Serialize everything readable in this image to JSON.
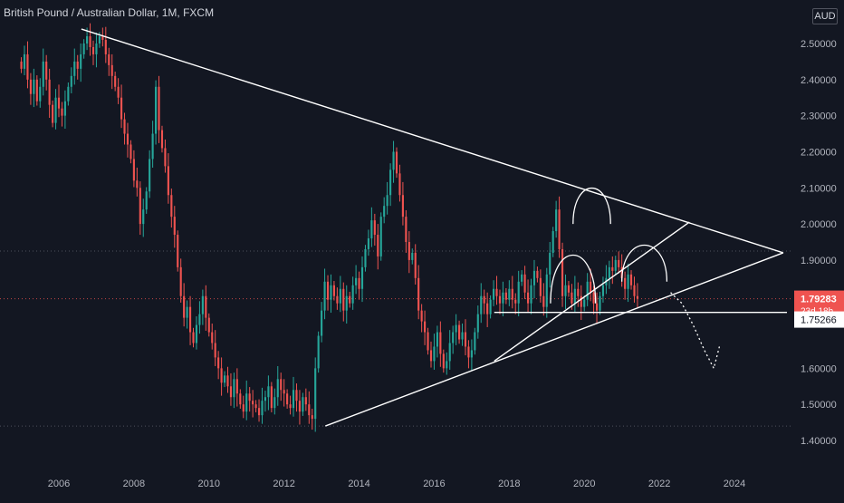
{
  "chart_data": {
    "type": "candlestick",
    "title": "British Pound / Australian Dollar, 1M, FXCM",
    "currency": "AUD",
    "y_range": [
      1.35,
      2.62
    ],
    "x_range": [
      2004.95,
      2025.4
    ],
    "y_ticks": [
      {
        "value": 2.5,
        "label": "2.50000"
      },
      {
        "value": 2.4,
        "label": "2.40000"
      },
      {
        "value": 2.3,
        "label": "2.30000"
      },
      {
        "value": 2.2,
        "label": "2.20000"
      },
      {
        "value": 2.1,
        "label": "2.10000"
      },
      {
        "value": 2.0,
        "label": "2.00000"
      },
      {
        "value": 1.9,
        "label": "1.90000"
      },
      {
        "value": 1.6,
        "label": "1.60000"
      },
      {
        "value": 1.5,
        "label": "1.50000"
      },
      {
        "value": 1.4,
        "label": "1.40000"
      }
    ],
    "x_ticks": [
      {
        "value": 2006,
        "label": "2006"
      },
      {
        "value": 2008,
        "label": "2008"
      },
      {
        "value": 2010,
        "label": "2010"
      },
      {
        "value": 2012,
        "label": "2012"
      },
      {
        "value": 2014,
        "label": "2014"
      },
      {
        "value": 2016,
        "label": "2016"
      },
      {
        "value": 2018,
        "label": "2018"
      },
      {
        "value": 2020,
        "label": "2020"
      },
      {
        "value": 2022,
        "label": "2022"
      },
      {
        "value": 2024,
        "label": "2024"
      }
    ],
    "price_labels": [
      {
        "value": 1.79283,
        "label": "1.79283",
        "sub": "23d 18h",
        "kind": "current"
      },
      {
        "value": 1.75266,
        "label": "1.75266",
        "kind": "marker"
      }
    ],
    "dotted_levels": [
      1.925,
      1.79283,
      1.44
    ],
    "monthly_close": [
      2.43,
      2.47,
      2.4,
      2.36,
      2.4,
      2.34,
      2.38,
      2.45,
      2.4,
      2.33,
      2.28,
      2.35,
      2.32,
      2.3,
      2.34,
      2.38,
      2.41,
      2.45,
      2.43,
      2.47,
      2.5,
      2.52,
      2.49,
      2.47,
      2.5,
      2.52,
      2.51,
      2.47,
      2.44,
      2.41,
      2.38,
      2.35,
      2.29,
      2.25,
      2.22,
      2.18,
      2.12,
      2.1,
      2.0,
      2.04,
      2.09,
      2.18,
      2.25,
      2.38,
      2.26,
      2.21,
      2.16,
      2.08,
      2.02,
      1.97,
      1.88,
      1.8,
      1.74,
      1.77,
      1.7,
      1.67,
      1.72,
      1.75,
      1.8,
      1.74,
      1.7,
      1.67,
      1.63,
      1.6,
      1.56,
      1.58,
      1.55,
      1.52,
      1.57,
      1.53,
      1.5,
      1.48,
      1.53,
      1.51,
      1.5,
      1.49,
      1.47,
      1.51,
      1.52,
      1.55,
      1.49,
      1.52,
      1.57,
      1.54,
      1.53,
      1.5,
      1.49,
      1.54,
      1.51,
      1.48,
      1.52,
      1.5,
      1.47,
      1.46,
      1.6,
      1.69,
      1.76,
      1.84,
      1.79,
      1.83,
      1.8,
      1.78,
      1.82,
      1.76,
      1.8,
      1.78,
      1.83,
      1.85,
      1.82,
      1.88,
      1.93,
      1.96,
      2.01,
      1.97,
      1.91,
      2.02,
      2.05,
      2.08,
      2.15,
      2.2,
      2.14,
      2.08,
      2.02,
      1.95,
      1.9,
      1.92,
      1.85,
      1.76,
      1.73,
      1.7,
      1.65,
      1.62,
      1.66,
      1.7,
      1.64,
      1.6,
      1.62,
      1.67,
      1.7,
      1.72,
      1.68,
      1.7,
      1.66,
      1.63,
      1.65,
      1.7,
      1.75,
      1.8,
      1.78,
      1.75,
      1.79,
      1.82,
      1.8,
      1.78,
      1.81,
      1.79,
      1.82,
      1.79,
      1.78,
      1.84,
      1.86,
      1.81,
      1.78,
      1.83,
      1.87,
      1.85,
      1.8,
      1.77,
      1.86,
      1.92,
      1.98,
      2.04,
      1.93,
      1.8,
      1.83,
      1.81,
      1.78,
      1.82,
      1.8,
      1.77,
      1.79,
      1.84,
      1.81,
      1.78,
      1.76,
      1.8,
      1.83,
      1.85,
      1.88,
      1.87,
      1.9,
      1.88,
      1.85,
      1.82,
      1.86,
      1.83,
      1.8,
      1.79283
    ],
    "first_candle_date": 2005.0
  },
  "drawings": {
    "descending_line": [
      [
        2006.6,
        2.54
      ],
      [
        2025.3,
        1.92
      ]
    ],
    "ascending_line": [
      [
        2013.1,
        1.44
      ],
      [
        2025.3,
        1.92
      ]
    ],
    "inner_support_line": [
      [
        2017.6,
        1.62
      ],
      [
        2022.8,
        2.005
      ]
    ],
    "horizontal_support": [
      [
        2017.6,
        1.755
      ],
      [
        2025.4,
        1.755
      ]
    ],
    "arches": [
      {
        "x0": 2019.1,
        "x1": 2020.3,
        "base": 1.78,
        "peak": 1.912
      },
      {
        "x0": 2019.7,
        "x1": 2020.7,
        "base": 2.0,
        "peak": 2.098
      },
      {
        "x0": 2021.0,
        "x1": 2022.2,
        "base": 1.84,
        "peak": 1.94
      }
    ],
    "forecast_path": [
      [
        2022.3,
        1.81
      ],
      [
        2022.6,
        1.78
      ],
      [
        2022.9,
        1.72
      ],
      [
        2023.2,
        1.65
      ],
      [
        2023.45,
        1.6
      ],
      [
        2023.6,
        1.66
      ]
    ]
  },
  "colors": {
    "background": "#131722",
    "bull": "#26a69a",
    "bear": "#ef5350",
    "drawing": "#ffffff",
    "axis_text": "#b2b5be",
    "price_label_bg": "#ef5350",
    "grid_dotted": "#5d606b"
  }
}
